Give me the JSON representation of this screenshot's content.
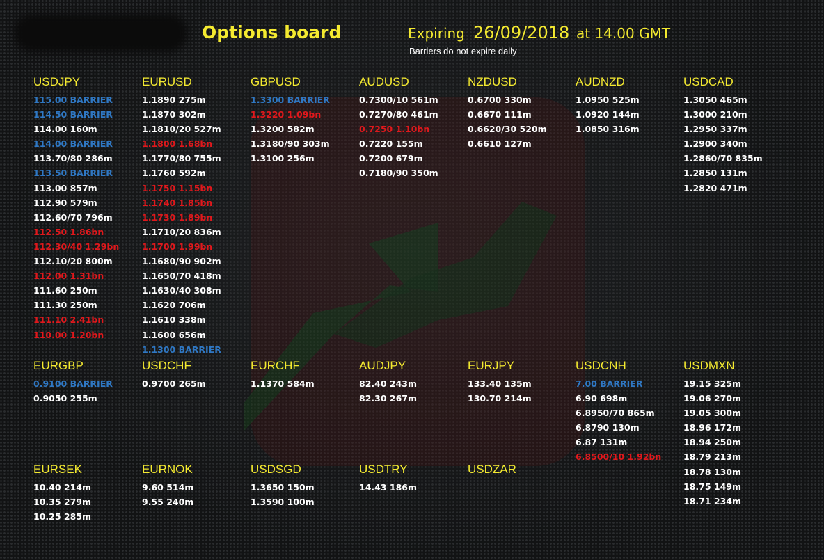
{
  "header": {
    "title": "Options board",
    "expiring_label": "Expiring",
    "date": "26/09/2018",
    "time_label": "at 14.00 GMT",
    "note": "Barriers do not expire daily"
  },
  "colors": {
    "background": "#151617",
    "heading": "#f4ea30",
    "standard": "#ffffff",
    "large": "#e0181c",
    "barrier": "#2f78c4"
  },
  "pairs": [
    {
      "name": "USDJPY",
      "rows": [
        {
          "text": "115.00 BARRIER",
          "kind": "blue"
        },
        {
          "text": "114.50 BARRIER",
          "kind": "blue"
        },
        {
          "text": "114.00 160m",
          "kind": "white"
        },
        {
          "text": "114.00 BARRIER",
          "kind": "blue"
        },
        {
          "text": "113.70/80 286m",
          "kind": "white"
        },
        {
          "text": "113.50 BARRIER",
          "kind": "blue"
        },
        {
          "text": "113.00 857m",
          "kind": "white"
        },
        {
          "text": "112.90 579m",
          "kind": "white"
        },
        {
          "text": "112.60/70 796m",
          "kind": "white"
        },
        {
          "text": "112.50 1.86bn",
          "kind": "red"
        },
        {
          "text": "112.30/40 1.29bn",
          "kind": "red"
        },
        {
          "text": "112.10/20 800m",
          "kind": "white"
        },
        {
          "text": "112.00 1.31bn",
          "kind": "red"
        },
        {
          "text": "111.60 250m",
          "kind": "white"
        },
        {
          "text": "111.30 250m",
          "kind": "white"
        },
        {
          "text": "111.10 2.41bn",
          "kind": "red"
        },
        {
          "text": "110.00 1.20bn",
          "kind": "red"
        }
      ]
    },
    {
      "name": "EURUSD",
      "rows": [
        {
          "text": "1.1890 275m",
          "kind": "white"
        },
        {
          "text": "1.1870 302m",
          "kind": "white"
        },
        {
          "text": "1.1810/20 527m",
          "kind": "white"
        },
        {
          "text": "1.1800 1.68bn",
          "kind": "red"
        },
        {
          "text": "1.1770/80 755m",
          "kind": "white"
        },
        {
          "text": "1.1760 592m",
          "kind": "white"
        },
        {
          "text": "1.1750 1.15bn",
          "kind": "red"
        },
        {
          "text": "1.1740 1.85bn",
          "kind": "red"
        },
        {
          "text": "1.1730 1.89bn",
          "kind": "red"
        },
        {
          "text": "1.1710/20 836m",
          "kind": "white"
        },
        {
          "text": "1.1700 1.99bn",
          "kind": "red"
        },
        {
          "text": "1.1680/90 902m",
          "kind": "white"
        },
        {
          "text": "1.1650/70 418m",
          "kind": "white"
        },
        {
          "text": "1.1630/40 308m",
          "kind": "white"
        },
        {
          "text": "1.1620 706m",
          "kind": "white"
        },
        {
          "text": "1.1610 338m",
          "kind": "white"
        },
        {
          "text": "1.1600 656m",
          "kind": "white"
        },
        {
          "text": "1.1300 BARRIER",
          "kind": "blue"
        }
      ]
    },
    {
      "name": "GBPUSD",
      "rows": [
        {
          "text": "1.3300 BARRIER",
          "kind": "blue"
        },
        {
          "text": "1.3220 1.09bn",
          "kind": "red"
        },
        {
          "text": "1.3200 582m",
          "kind": "white"
        },
        {
          "text": "1.3180/90 303m",
          "kind": "white"
        },
        {
          "text": "1.3100 256m",
          "kind": "white"
        }
      ]
    },
    {
      "name": "AUDUSD",
      "rows": [
        {
          "text": "0.7300/10 561m",
          "kind": "white"
        },
        {
          "text": "0.7270/80 461m",
          "kind": "white"
        },
        {
          "text": "0.7250 1.10bn",
          "kind": "red"
        },
        {
          "text": "0.7220 155m",
          "kind": "white"
        },
        {
          "text": "0.7200 679m",
          "kind": "white"
        },
        {
          "text": "0.7180/90 350m",
          "kind": "white"
        }
      ]
    },
    {
      "name": "NZDUSD",
      "rows": [
        {
          "text": "0.6700 330m",
          "kind": "white"
        },
        {
          "text": "0.6670 111m",
          "kind": "white"
        },
        {
          "text": "0.6620/30 520m",
          "kind": "white"
        },
        {
          "text": "0.6610 127m",
          "kind": "white"
        }
      ]
    },
    {
      "name": "AUDNZD",
      "rows": [
        {
          "text": "1.0950 525m",
          "kind": "white"
        },
        {
          "text": "1.0920 144m",
          "kind": "white"
        },
        {
          "text": "1.0850 316m",
          "kind": "white"
        }
      ]
    },
    {
      "name": "USDCAD",
      "rows": [
        {
          "text": "1.3050 465m",
          "kind": "white"
        },
        {
          "text": "1.3000 210m",
          "kind": "white"
        },
        {
          "text": "1.2950 337m",
          "kind": "white"
        },
        {
          "text": "1.2900 340m",
          "kind": "white"
        },
        {
          "text": "1.2860/70 835m",
          "kind": "white"
        },
        {
          "text": "1.2850 131m",
          "kind": "white"
        },
        {
          "text": "1.2820 471m",
          "kind": "white"
        }
      ]
    },
    {
      "name": "EURGBP",
      "rows": [
        {
          "text": "0.9100 BARRIER",
          "kind": "blue"
        },
        {
          "text": "0.9050 255m",
          "kind": "white"
        }
      ]
    },
    {
      "name": "USDCHF",
      "rows": [
        {
          "text": "0.9700 265m",
          "kind": "white"
        }
      ]
    },
    {
      "name": "EURCHF",
      "rows": [
        {
          "text": "1.1370 584m",
          "kind": "white"
        }
      ]
    },
    {
      "name": "AUDJPY",
      "rows": [
        {
          "text": "82.40 243m",
          "kind": "white"
        },
        {
          "text": "82.30 267m",
          "kind": "white"
        }
      ]
    },
    {
      "name": "EURJPY",
      "rows": [
        {
          "text": "133.40 135m",
          "kind": "white"
        },
        {
          "text": "130.70 214m",
          "kind": "white"
        }
      ]
    },
    {
      "name": "USDCNH",
      "rows": [
        {
          "text": "7.00 BARRIER",
          "kind": "blue"
        },
        {
          "text": "6.90 698m",
          "kind": "white"
        },
        {
          "text": "6.8950/70 865m",
          "kind": "white"
        },
        {
          "text": "6.8790 130m",
          "kind": "white"
        },
        {
          "text": "6.87 131m",
          "kind": "white"
        },
        {
          "text": "6.8500/10 1.92bn",
          "kind": "red"
        }
      ]
    },
    {
      "name": "USDMXN",
      "rows": [
        {
          "text": "19.15 325m",
          "kind": "white"
        },
        {
          "text": "19.06 270m",
          "kind": "white"
        },
        {
          "text": "19.05 300m",
          "kind": "white"
        },
        {
          "text": "18.96 172m",
          "kind": "white"
        },
        {
          "text": "18.94 250m",
          "kind": "white"
        },
        {
          "text": "18.79 213m",
          "kind": "white"
        },
        {
          "text": "18.78 130m",
          "kind": "white"
        },
        {
          "text": "18.75 149m",
          "kind": "white"
        },
        {
          "text": "18.71 234m",
          "kind": "white"
        }
      ]
    },
    {
      "name": "EURSEK",
      "rows": [
        {
          "text": "10.40 214m",
          "kind": "white"
        },
        {
          "text": "10.35 279m",
          "kind": "white"
        },
        {
          "text": "10.25 285m",
          "kind": "white"
        }
      ]
    },
    {
      "name": "EURNOK",
      "rows": [
        {
          "text": "9.60 514m",
          "kind": "white"
        },
        {
          "text": "9.55 240m",
          "kind": "white"
        }
      ]
    },
    {
      "name": "USDSGD",
      "rows": [
        {
          "text": "1.3650 150m",
          "kind": "white"
        },
        {
          "text": "1.3590 100m",
          "kind": "white"
        }
      ]
    },
    {
      "name": "USDTRY",
      "rows": [
        {
          "text": "14.43 186m",
          "kind": "white"
        }
      ]
    },
    {
      "name": "USDZAR",
      "rows": []
    }
  ]
}
